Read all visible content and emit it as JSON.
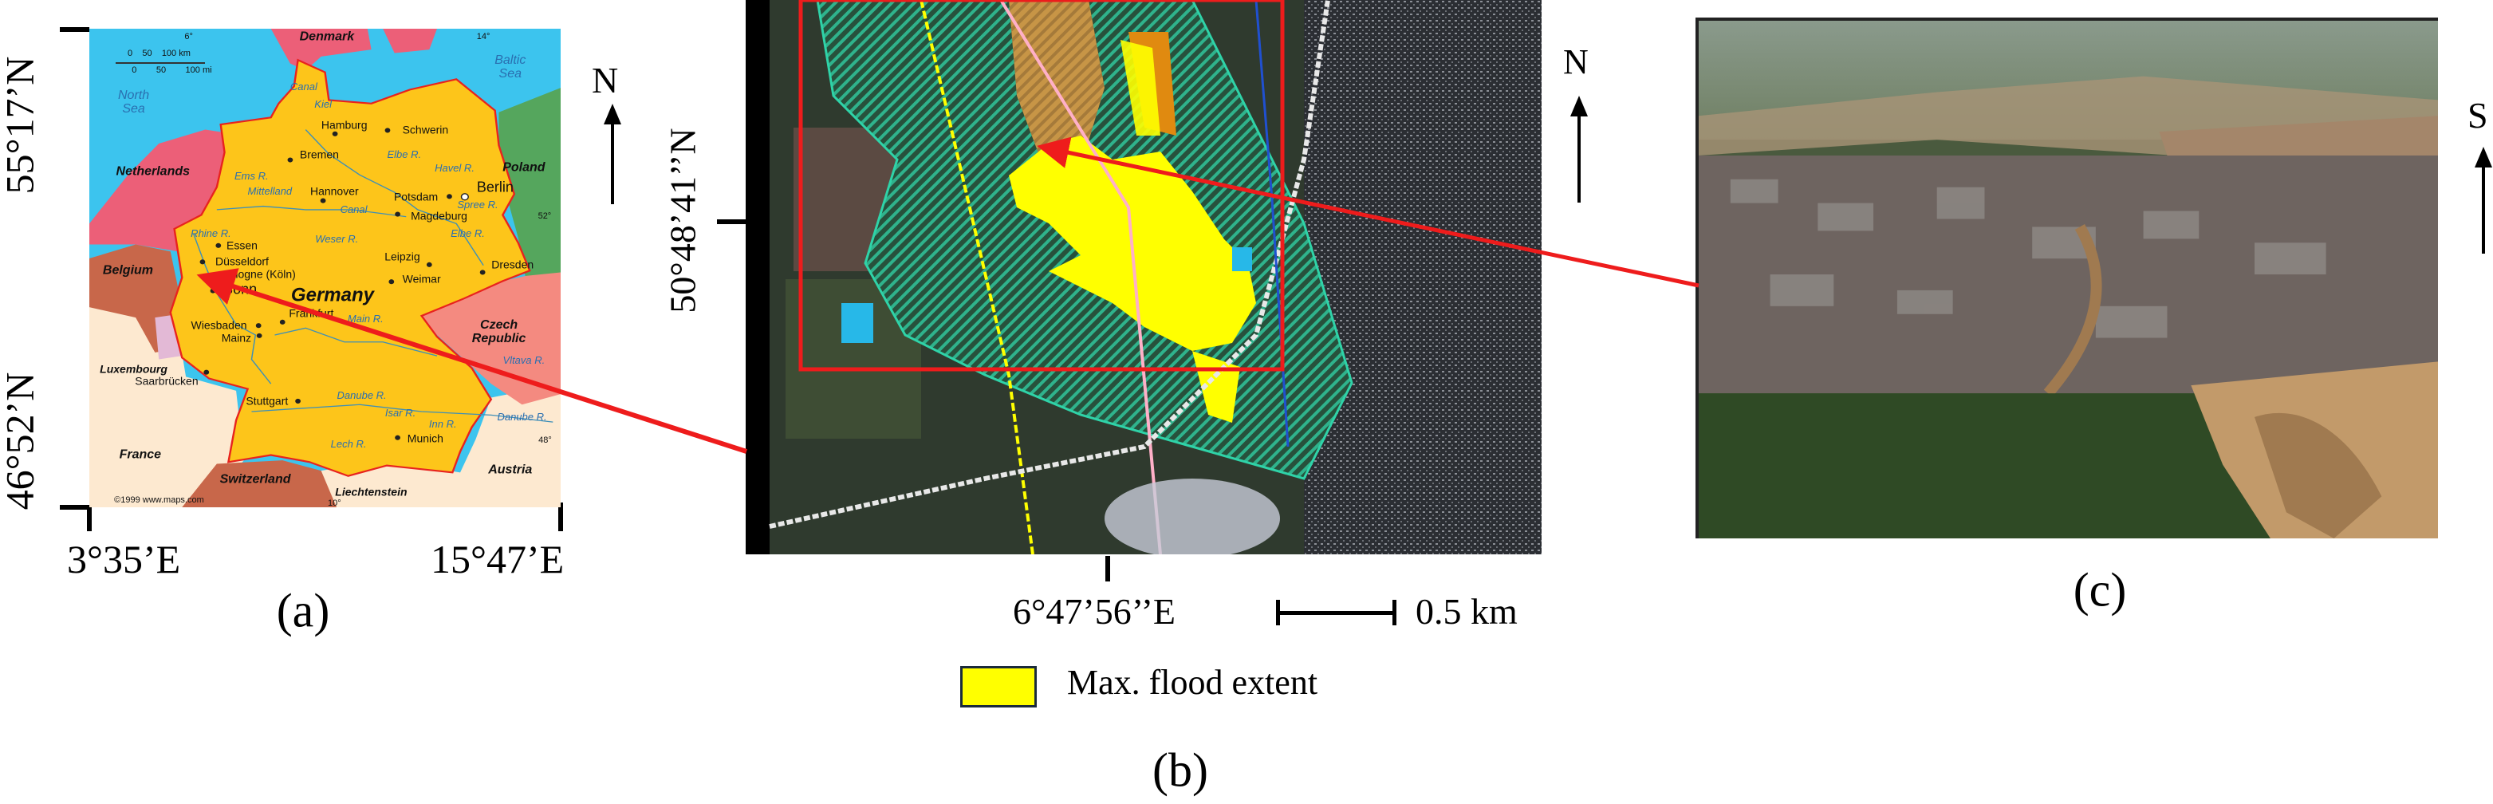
{
  "panel_a": {
    "lat_top": "55°17’N",
    "lat_bottom": "46°52’N",
    "lon_left": "3°35’E",
    "lon_right": "15°47’E",
    "north_label": "N",
    "caption": "(a)",
    "map_labels": [
      "Denmark",
      "6°",
      "14°",
      "0    50    100 km",
      "0        50        100 mi",
      "Baltic\nSea",
      "North\nSea",
      "Canal",
      "Kiel",
      "Hamburg",
      "Schwerin",
      "Bremen",
      "Elbe R.",
      "Havel R.",
      "Netherlands",
      "Poland",
      "Ems R.",
      "Mittelland",
      "Hannover",
      "Potsdam",
      "Berlin",
      "Canal",
      "Spree R.",
      "Magdeburg",
      "52°",
      "Rhine R.",
      "Essen",
      "Weser R.",
      "Elbe R.",
      "Leipzig",
      "Düsseldorf",
      "Dresden",
      "Belgium",
      "Cologne (Köln)",
      "Weimar",
      "Bonn",
      "Germany",
      "Frankfurt",
      "Main R.",
      "Czech\nRepublic",
      "Wiesbaden",
      "Mainz",
      "Vltava R.",
      "Luxembourg",
      "Saarbrücken",
      "Danube R.",
      "Stuttgart",
      "Isar R.",
      "Danube R.",
      "Inn R.",
      "Munich",
      "Lech R.",
      "48°",
      "France",
      "Austria",
      "Switzerland",
      "Liechtenstein",
      "©1999 www.maps.com",
      "10°"
    ],
    "colors": {
      "sea": "#3cc4ee",
      "germany": "#fdc51a",
      "netherlands": "#ec5f78",
      "belgium": "#c8674a",
      "poland": "#55a65d",
      "czech": "#f48a80",
      "france": "#fde9d0",
      "border": "#e8231e"
    }
  },
  "panel_b": {
    "lat": "50°48’41’’N",
    "lon": "6°47’56’’E",
    "north_label": "N",
    "scale_label": "0.5 km",
    "legend_label": "Max. flood extent",
    "legend_color": "#ffff00",
    "caption": "(b)"
  },
  "panel_c": {
    "orientation_label": "S",
    "caption": "(c)"
  },
  "connector_color": "#ee1c1c"
}
